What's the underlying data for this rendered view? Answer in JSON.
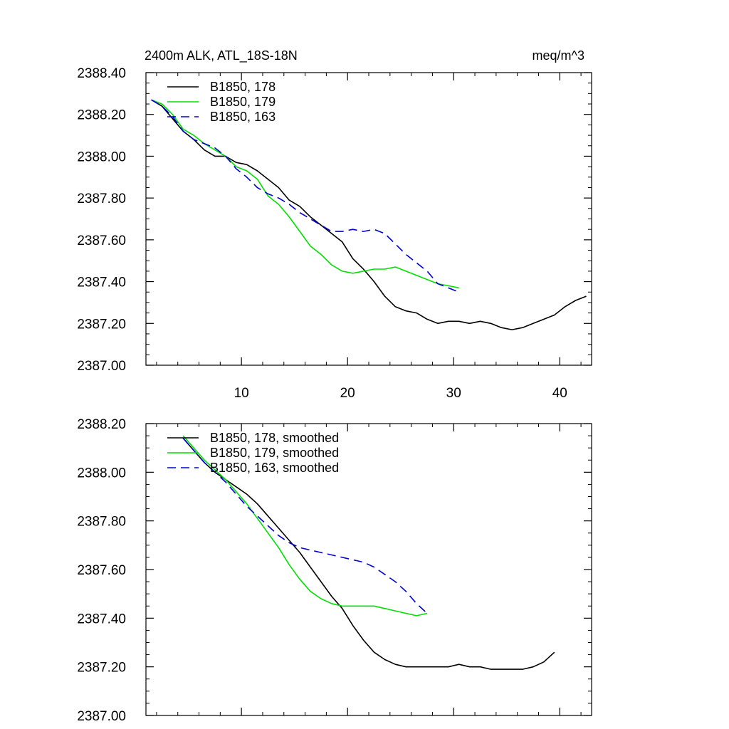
{
  "chart_data": [
    {
      "type": "line",
      "title": "2400m ALK, ATL_18S-18N",
      "units": "meq/m^3",
      "xlim": [
        1,
        43
      ],
      "ylim": [
        2387.0,
        2388.4
      ],
      "xticks": [
        10,
        20,
        30,
        40
      ],
      "xtick_labels": [
        "10",
        "20",
        "30",
        "40"
      ],
      "yticks": [
        2387.0,
        2387.2,
        2387.4,
        2387.6,
        2387.8,
        2388.0,
        2388.2,
        2388.4
      ],
      "ytick_labels": [
        "2387.00",
        "2387.20",
        "2387.40",
        "2387.60",
        "2387.80",
        "2388.00",
        "2388.20",
        "2388.40"
      ],
      "legend_position": "top-left",
      "series": [
        {
          "name": "B1850, 178",
          "color": "#000000",
          "dash": "solid",
          "x": [
            1.5,
            2.5,
            3.5,
            4.5,
            5.5,
            6.5,
            7.5,
            8.5,
            9.5,
            10.5,
            11.5,
            12.5,
            13.5,
            14.5,
            15.5,
            16.5,
            17.5,
            18.5,
            19.5,
            20.5,
            21.5,
            22.5,
            23.5,
            24.5,
            25.5,
            26.5,
            27.5,
            28.5,
            29.5,
            30.5,
            31.5,
            32.5,
            33.5,
            34.5,
            35.5,
            36.5,
            37.5,
            38.5,
            39.5,
            40.5,
            41.5,
            42.5
          ],
          "y": [
            2388.27,
            2388.24,
            2388.18,
            2388.12,
            2388.08,
            2388.03,
            2388.0,
            2388.0,
            2387.97,
            2387.96,
            2387.93,
            2387.89,
            2387.85,
            2387.79,
            2387.76,
            2387.71,
            2387.67,
            2387.63,
            2387.59,
            2387.51,
            2387.46,
            2387.4,
            2387.33,
            2387.28,
            2387.26,
            2387.25,
            2387.22,
            2387.2,
            2387.21,
            2387.21,
            2387.2,
            2387.21,
            2387.2,
            2387.18,
            2387.17,
            2387.18,
            2387.2,
            2387.22,
            2387.24,
            2387.28,
            2387.31,
            2387.33
          ]
        },
        {
          "name": "B1850, 179",
          "color": "#00e000",
          "dash": "solid",
          "x": [
            1.5,
            2.5,
            3.5,
            4.5,
            5.5,
            6.5,
            7.5,
            8.5,
            9.5,
            10.5,
            11.5,
            12.5,
            13.5,
            14.5,
            15.5,
            16.5,
            17.5,
            18.5,
            19.5,
            20.5,
            21.5,
            22.5,
            23.5,
            24.5,
            25.5,
            26.5,
            27.5,
            28.5,
            29.5,
            30.5
          ],
          "y": [
            2388.27,
            2388.25,
            2388.2,
            2388.13,
            2388.1,
            2388.06,
            2388.03,
            2388.0,
            2387.95,
            2387.93,
            2387.89,
            2387.81,
            2387.77,
            2387.71,
            2387.64,
            2387.57,
            2387.53,
            2387.48,
            2387.45,
            2387.44,
            2387.45,
            2387.46,
            2387.46,
            2387.47,
            2387.45,
            2387.43,
            2387.41,
            2387.39,
            2387.38,
            2387.37
          ]
        },
        {
          "name": "B1850, 163",
          "color": "#0000d0",
          "dash": "dashed",
          "x": [
            1.5,
            2.5,
            3.5,
            4.5,
            5.5,
            6.5,
            7.5,
            8.5,
            9.5,
            10.5,
            11.5,
            12.5,
            13.5,
            14.5,
            15.5,
            16.5,
            17.5,
            18.5,
            19.5,
            20.5,
            21.5,
            22.5,
            23.5,
            24.5,
            25.5,
            26.5,
            27.5,
            28.5,
            29.5,
            30.5
          ],
          "y": [
            2388.27,
            2388.24,
            2388.19,
            2388.12,
            2388.08,
            2388.06,
            2388.04,
            2388.0,
            2387.94,
            2387.9,
            2387.85,
            2387.82,
            2387.8,
            2387.77,
            2387.73,
            2387.7,
            2387.67,
            2387.64,
            2387.64,
            2387.65,
            2387.64,
            2387.65,
            2387.63,
            2387.58,
            2387.53,
            2387.49,
            2387.45,
            2387.39,
            2387.37,
            2387.35
          ]
        }
      ]
    },
    {
      "type": "line",
      "xlim": [
        1,
        43
      ],
      "ylim": [
        2387.0,
        2388.2
      ],
      "xticks": [
        10,
        20,
        30,
        40
      ],
      "yticks": [
        2387.0,
        2387.2,
        2387.4,
        2387.6,
        2387.8,
        2388.0,
        2388.2
      ],
      "ytick_labels": [
        "2387.00",
        "2387.20",
        "2387.40",
        "2387.60",
        "2387.80",
        "2388.00",
        "2388.20"
      ],
      "legend_position": "top-left",
      "series": [
        {
          "name": "B1850, 178, smoothed",
          "color": "#000000",
          "dash": "solid",
          "x": [
            4.5,
            5.5,
            6.5,
            7.5,
            8.5,
            9.5,
            10.5,
            11.5,
            12.5,
            13.5,
            14.5,
            15.5,
            16.5,
            17.5,
            18.5,
            19.5,
            20.5,
            21.5,
            22.5,
            23.5,
            24.5,
            25.5,
            26.5,
            27.5,
            28.5,
            29.5,
            30.5,
            31.5,
            32.5,
            33.5,
            34.5,
            35.5,
            36.5,
            37.5,
            38.5,
            39.5
          ],
          "y": [
            2388.14,
            2388.09,
            2388.04,
            2388.0,
            2387.97,
            2387.94,
            2387.91,
            2387.87,
            2387.82,
            2387.77,
            2387.72,
            2387.67,
            2387.61,
            2387.55,
            2387.49,
            2387.44,
            2387.37,
            2387.31,
            2387.26,
            2387.23,
            2387.21,
            2387.2,
            2387.2,
            2387.2,
            2387.2,
            2387.2,
            2387.21,
            2387.2,
            2387.2,
            2387.19,
            2387.19,
            2387.19,
            2387.19,
            2387.2,
            2387.22,
            2387.26
          ]
        },
        {
          "name": "B1850, 179, smoothed",
          "color": "#00e000",
          "dash": "solid",
          "x": [
            4.5,
            5.5,
            6.5,
            7.5,
            8.5,
            9.5,
            10.5,
            11.5,
            12.5,
            13.5,
            14.5,
            15.5,
            16.5,
            17.5,
            18.5,
            19.5,
            20.5,
            21.5,
            22.5,
            23.5,
            24.5,
            25.5,
            26.5,
            27.5
          ],
          "y": [
            2388.15,
            2388.1,
            2388.05,
            2388.01,
            2387.97,
            2387.92,
            2387.87,
            2387.81,
            2387.75,
            2387.69,
            2387.62,
            2387.56,
            2387.51,
            2387.48,
            2387.46,
            2387.45,
            2387.45,
            2387.45,
            2387.45,
            2387.44,
            2387.43,
            2387.42,
            2387.41,
            2387.42
          ]
        },
        {
          "name": "B1850, 163, smoothed",
          "color": "#0000d0",
          "dash": "dashed",
          "x": [
            4.5,
            5.5,
            6.5,
            7.5,
            8.5,
            9.5,
            10.5,
            11.5,
            12.5,
            13.5,
            14.5,
            15.5,
            16.5,
            17.5,
            18.5,
            19.5,
            20.5,
            21.5,
            22.5,
            23.5,
            24.5,
            25.5,
            26.5,
            27.5
          ],
          "y": [
            2388.14,
            2388.09,
            2388.04,
            2388.0,
            2387.96,
            2387.91,
            2387.86,
            2387.82,
            2387.78,
            2387.74,
            2387.71,
            2387.69,
            2387.68,
            2387.67,
            2387.66,
            2387.65,
            2387.64,
            2387.63,
            2387.61,
            2387.58,
            2387.55,
            2387.51,
            2387.46,
            2387.42
          ]
        }
      ]
    }
  ]
}
